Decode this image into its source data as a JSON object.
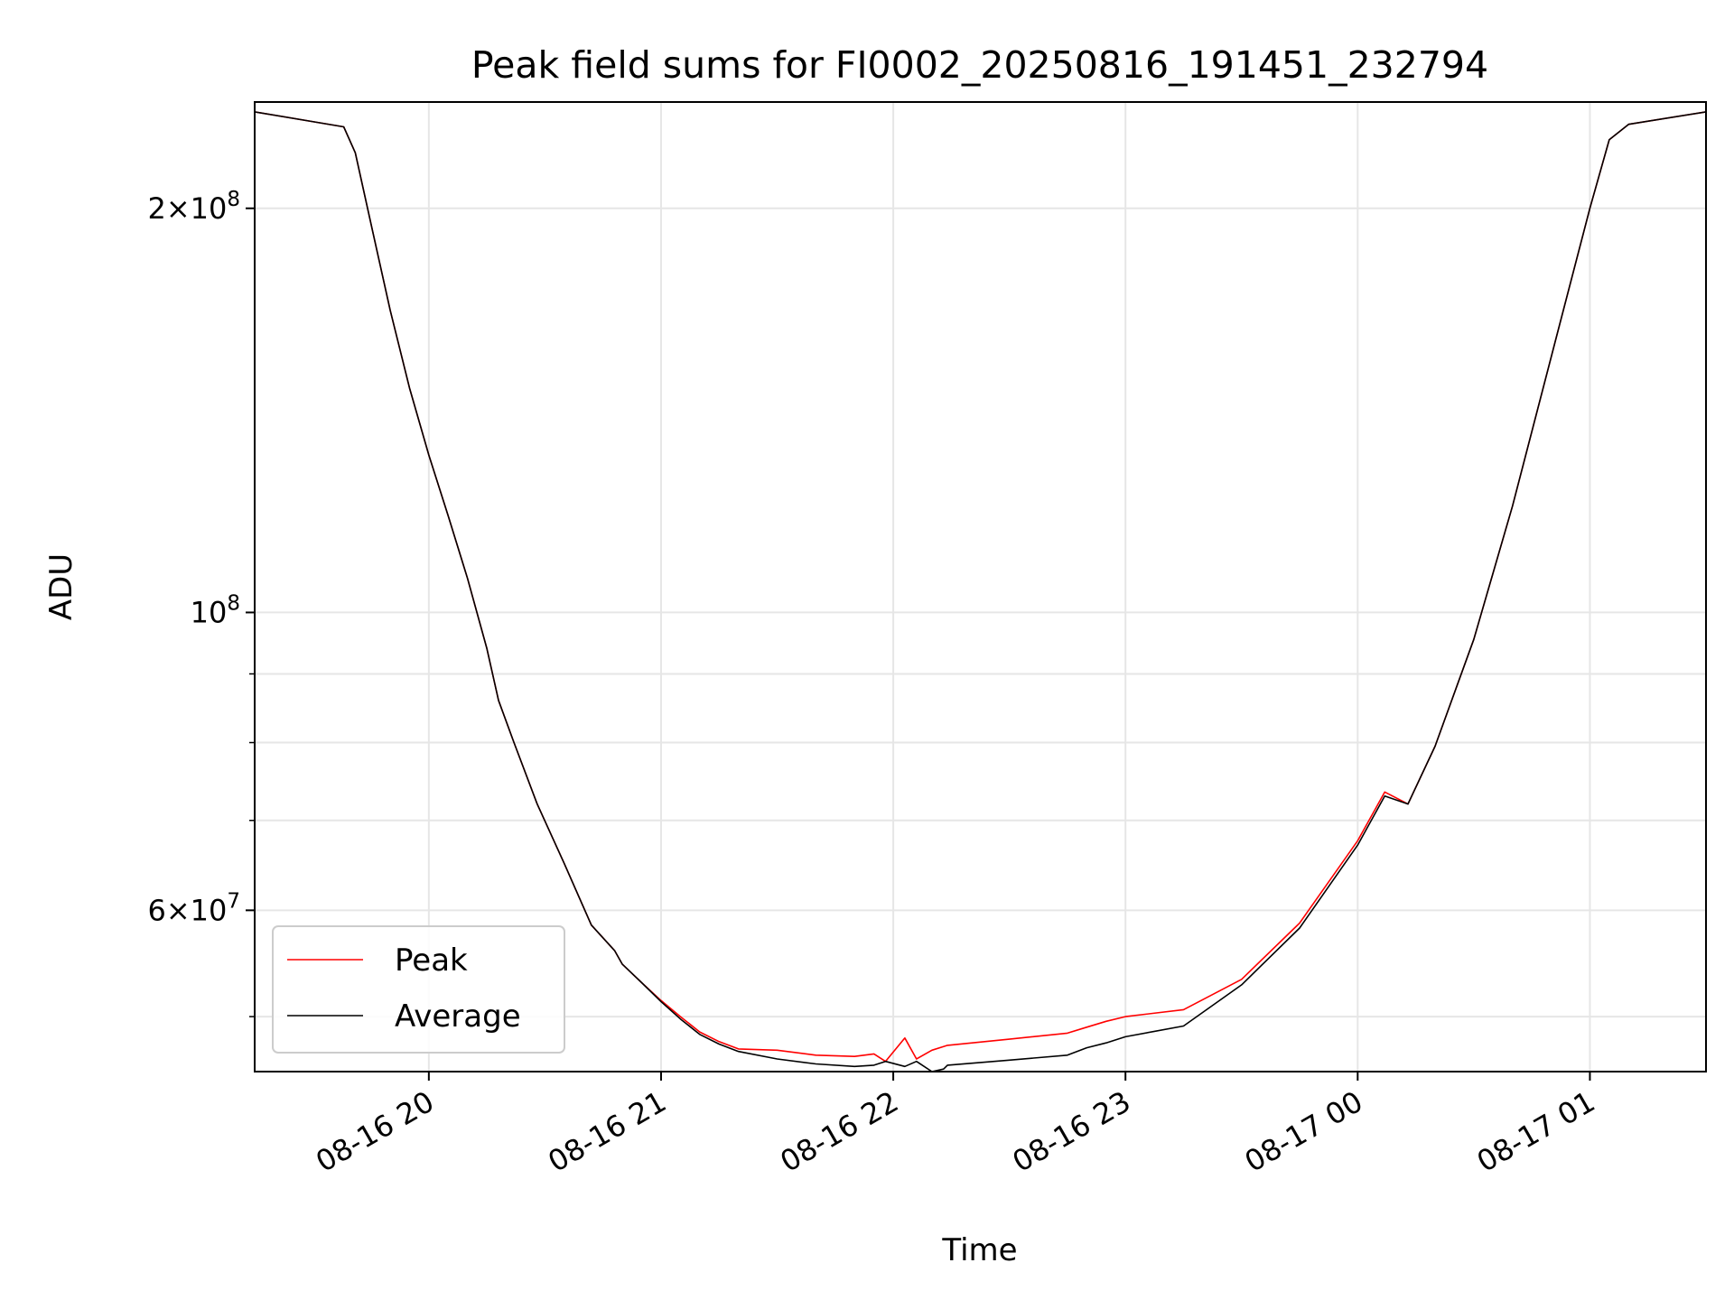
{
  "chart_data": {
    "type": "line",
    "title": "Peak field sums for FI0002_20250816_191451_232794",
    "xlabel": "Time",
    "ylabel": "ADU",
    "y_scale": "log",
    "x_range": [
      "2025-08-16 19:15",
      "2025-08-17 01:30"
    ],
    "ylim": [
      45500000,
      240000000
    ],
    "x_ticks": [
      {
        "value": "2025-08-16 20:00",
        "label": "08-16 20"
      },
      {
        "value": "2025-08-16 21:00",
        "label": "08-16 21"
      },
      {
        "value": "2025-08-16 22:00",
        "label": "08-16 22"
      },
      {
        "value": "2025-08-16 23:00",
        "label": "08-16 23"
      },
      {
        "value": "2025-08-17 00:00",
        "label": "08-17 00"
      },
      {
        "value": "2025-08-17 01:00",
        "label": "08-17 01"
      }
    ],
    "y_ticks": [
      {
        "value": 200000000,
        "mantissa": "2",
        "exponent": "8"
      },
      {
        "value": 100000000,
        "mantissa": "",
        "exponent": "8"
      },
      {
        "value": 60000000,
        "mantissa": "6",
        "exponent": "7"
      }
    ],
    "y_minor_ticks": [
      50000000,
      70000000,
      80000000,
      90000000
    ],
    "grid": true,
    "legend_position": "lower-left",
    "series": [
      {
        "name": "Peak",
        "color": "#ff0000",
        "x": [
          "2025-08-16 19:15",
          "2025-08-16 19:38",
          "2025-08-16 19:41",
          "2025-08-16 19:45",
          "2025-08-16 19:50",
          "2025-08-16 19:55",
          "2025-08-16 20:00",
          "2025-08-16 20:05",
          "2025-08-16 20:10",
          "2025-08-16 20:15",
          "2025-08-16 20:18",
          "2025-08-16 20:22",
          "2025-08-16 20:28",
          "2025-08-16 20:35",
          "2025-08-16 20:42",
          "2025-08-16 20:48",
          "2025-08-16 20:50",
          "2025-08-16 20:55",
          "2025-08-16 21:00",
          "2025-08-16 21:05",
          "2025-08-16 21:10",
          "2025-08-16 21:15",
          "2025-08-16 21:20",
          "2025-08-16 21:30",
          "2025-08-16 21:40",
          "2025-08-16 21:50",
          "2025-08-16 21:55",
          "2025-08-16 21:58",
          "2025-08-16 22:03",
          "2025-08-16 22:06",
          "2025-08-16 22:10",
          "2025-08-16 22:13",
          "2025-08-16 22:14",
          "2025-08-16 22:30",
          "2025-08-16 22:45",
          "2025-08-16 22:50",
          "2025-08-16 22:55",
          "2025-08-16 23:00",
          "2025-08-16 23:15",
          "2025-08-16 23:30",
          "2025-08-16 23:45",
          "2025-08-17 00:00",
          "2025-08-17 00:07",
          "2025-08-17 00:13",
          "2025-08-17 00:20",
          "2025-08-17 00:30",
          "2025-08-17 00:40",
          "2025-08-17 00:50",
          "2025-08-17 01:00",
          "2025-08-17 01:05",
          "2025-08-17 01:10",
          "2025-08-17 01:30"
        ],
        "y": [
          236000000,
          230000000,
          220000000,
          195000000,
          168000000,
          147000000,
          131000000,
          118000000,
          106000000,
          94000000,
          86000000,
          80000000,
          72000000,
          65000000,
          58500000,
          56000000,
          54700000,
          53000000,
          51400000,
          50000000,
          48700000,
          47900000,
          47300000,
          47200000,
          46800000,
          46700000,
          46900000,
          46300000,
          48200000,
          46500000,
          47200000,
          47500000,
          47600000,
          48100000,
          48600000,
          49100000,
          49600000,
          50000000,
          50600000,
          53300000,
          58700000,
          67600000,
          73500000,
          72000000,
          79500000,
          95500000,
          120000000,
          155000000,
          200000000,
          225000000,
          231000000,
          236000000
        ]
      },
      {
        "name": "Average",
        "color": "#000000",
        "x": [
          "2025-08-16 19:15",
          "2025-08-16 19:38",
          "2025-08-16 19:41",
          "2025-08-16 19:45",
          "2025-08-16 19:50",
          "2025-08-16 19:55",
          "2025-08-16 20:00",
          "2025-08-16 20:05",
          "2025-08-16 20:10",
          "2025-08-16 20:15",
          "2025-08-16 20:18",
          "2025-08-16 20:22",
          "2025-08-16 20:28",
          "2025-08-16 20:35",
          "2025-08-16 20:42",
          "2025-08-16 20:48",
          "2025-08-16 20:50",
          "2025-08-16 20:55",
          "2025-08-16 21:00",
          "2025-08-16 21:05",
          "2025-08-16 21:10",
          "2025-08-16 21:15",
          "2025-08-16 21:20",
          "2025-08-16 21:30",
          "2025-08-16 21:40",
          "2025-08-16 21:50",
          "2025-08-16 21:55",
          "2025-08-16 21:58",
          "2025-08-16 22:03",
          "2025-08-16 22:06",
          "2025-08-16 22:10",
          "2025-08-16 22:13",
          "2025-08-16 22:14",
          "2025-08-16 22:30",
          "2025-08-16 22:45",
          "2025-08-16 22:50",
          "2025-08-16 22:55",
          "2025-08-16 23:00",
          "2025-08-16 23:15",
          "2025-08-16 23:30",
          "2025-08-16 23:45",
          "2025-08-17 00:00",
          "2025-08-17 00:07",
          "2025-08-17 00:13",
          "2025-08-17 00:20",
          "2025-08-17 00:30",
          "2025-08-17 00:40",
          "2025-08-17 00:50",
          "2025-08-17 01:00",
          "2025-08-17 01:05",
          "2025-08-17 01:10",
          "2025-08-17 01:30"
        ],
        "y": [
          236000000,
          230000000,
          220000000,
          195000000,
          168000000,
          147000000,
          131000000,
          118000000,
          106000000,
          94000000,
          86000000,
          80000000,
          72000000,
          65000000,
          58500000,
          56000000,
          54700000,
          53000000,
          51300000,
          49800000,
          48500000,
          47700000,
          47100000,
          46500000,
          46100000,
          45900000,
          46000000,
          46300000,
          45900000,
          46300000,
          45500000,
          45700000,
          46000000,
          46400000,
          46800000,
          47400000,
          47800000,
          48300000,
          49200000,
          52800000,
          58200000,
          67100000,
          73000000,
          72000000,
          79500000,
          95500000,
          120000000,
          155000000,
          200000000,
          225000000,
          231000000,
          236000000
        ]
      }
    ]
  }
}
